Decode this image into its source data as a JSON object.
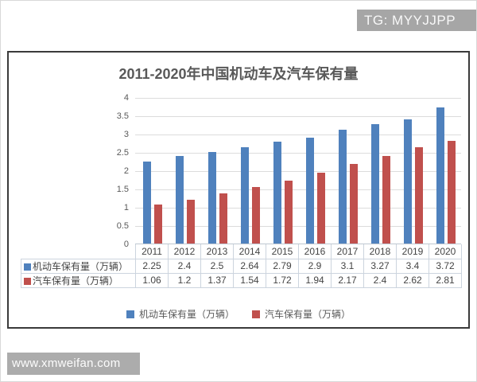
{
  "badge": {
    "text": "TG: MYYJJPP",
    "bg": "#a6a6a6"
  },
  "watermark": {
    "text": "www.xmweifan.com",
    "bg": "#acacac"
  },
  "chart_data": {
    "type": "bar",
    "title": "2011-2020年中国机动车及汽车保有量",
    "categories": [
      "2011",
      "2012",
      "2013",
      "2014",
      "2015",
      "2016",
      "2017",
      "2018",
      "2019",
      "2020"
    ],
    "series": [
      {
        "name": "机动车保有量（万辆）",
        "color": "#4F81BD",
        "values": [
          2.25,
          2.4,
          2.5,
          2.64,
          2.79,
          2.9,
          3.1,
          3.27,
          3.4,
          3.72
        ]
      },
      {
        "name": "汽车保有量（万辆）",
        "color": "#C0504D",
        "values": [
          1.06,
          1.2,
          1.37,
          1.54,
          1.72,
          1.94,
          2.17,
          2.4,
          2.62,
          2.81
        ]
      }
    ],
    "xlabel": "",
    "ylabel": "",
    "ylim": [
      0,
      4
    ],
    "ytick_step": 0.5,
    "grid": true,
    "legend_position": "bottom",
    "data_table": true
  }
}
